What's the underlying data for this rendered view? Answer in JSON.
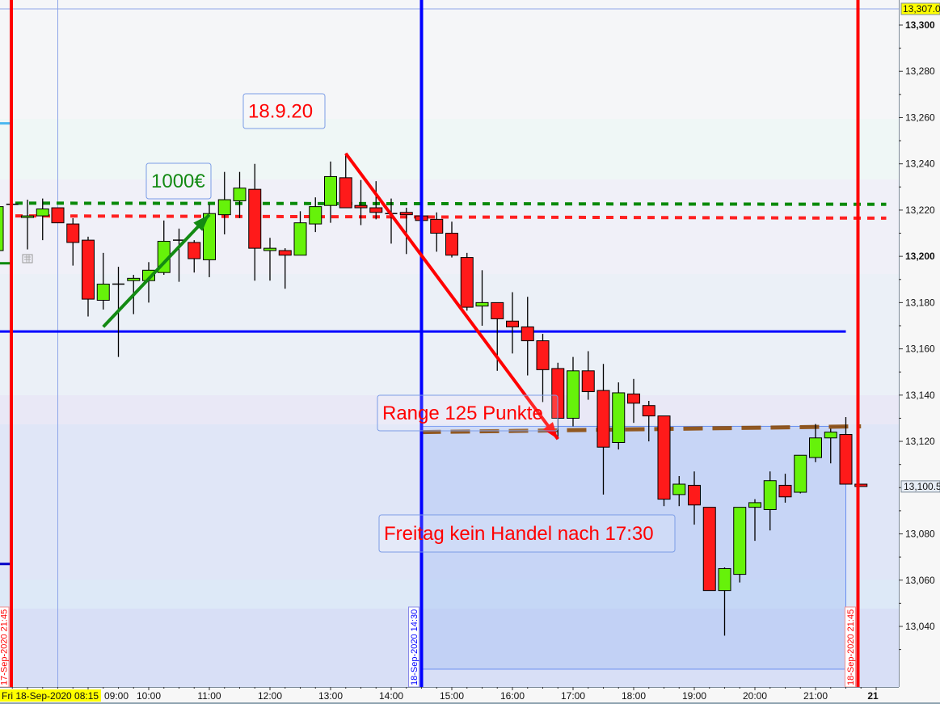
{
  "chart_data": {
    "type": "candlestick",
    "title": "",
    "xlabel": "",
    "ylabel": "",
    "ylim": [
      13021,
      13307
    ],
    "grid": false,
    "colors": {
      "up": "#66f20a",
      "down": "#ff1a1a",
      "wick": "#000000"
    },
    "y_ticks": [
      {
        "value": 13300,
        "label": "13,300",
        "bold": true
      },
      {
        "value": 13280,
        "label": "13,280"
      },
      {
        "value": 13260,
        "label": "13,260"
      },
      {
        "value": 13240,
        "label": "13,240"
      },
      {
        "value": 13220,
        "label": "13,220"
      },
      {
        "value": 13200,
        "label": "13,200",
        "bold": true
      },
      {
        "value": 13180,
        "label": "13,180"
      },
      {
        "value": 13160,
        "label": "13,160"
      },
      {
        "value": 13140,
        "label": "13,140"
      },
      {
        "value": 13120,
        "label": "13,120"
      },
      {
        "value": 13080,
        "label": "13,080"
      },
      {
        "value": 13060,
        "label": "13,060"
      },
      {
        "value": 13040,
        "label": "13,040"
      }
    ],
    "x_ticks": [
      {
        "time": "09:00",
        "label": "09:00"
      },
      {
        "time": "10:00",
        "label": "10:00"
      },
      {
        "time": "11:00",
        "label": "11:00"
      },
      {
        "time": "12:00",
        "label": "12:00"
      },
      {
        "time": "13:00",
        "label": "13:00"
      },
      {
        "time": "14:00",
        "label": "14:00"
      },
      {
        "time": "15:00",
        "label": "15:00"
      },
      {
        "time": "16:00",
        "label": "16:00"
      },
      {
        "time": "17:00",
        "label": "17:00"
      },
      {
        "time": "18:00",
        "label": "18:00"
      },
      {
        "time": "19:00",
        "label": "19:00"
      },
      {
        "time": "20:00",
        "label": "20:00"
      },
      {
        "time": "21:00",
        "label": "21:00"
      },
      {
        "time": "22:00",
        "label": "21",
        "bold": true
      }
    ],
    "candles": [
      {
        "t": "07:30",
        "o": 13202.5,
        "h": 13223.5,
        "l": 13200.5,
        "c": 13221.5
      },
      {
        "t": "07:45",
        "o": 13222.5,
        "h": 13222.5,
        "l": 13222.0,
        "c": 13222.5
      },
      {
        "t": "08:00",
        "o": 13217.0,
        "h": 13224.5,
        "l": 13203.0,
        "c": 13217.5
      },
      {
        "t": "08:15",
        "o": 13217.5,
        "h": 13225.0,
        "l": 13207.0,
        "c": 13220.5
      },
      {
        "t": "08:30",
        "o": 13221.0,
        "h": 13221.0,
        "l": 13214.5,
        "c": 13214.5
      },
      {
        "t": "08:45",
        "o": 13214.0,
        "h": 13216.5,
        "l": 13196.0,
        "c": 13206.0
      },
      {
        "t": "09:00",
        "o": 13207.0,
        "h": 13208.5,
        "l": 13174.0,
        "c": 13181.5
      },
      {
        "t": "09:15",
        "o": 13181.0,
        "h": 13201.5,
        "l": 13177.0,
        "c": 13188.0
      },
      {
        "t": "09:30",
        "o": 13188.0,
        "h": 13195.5,
        "l": 13156.5,
        "c": 13188.0
      },
      {
        "t": "09:45",
        "o": 13189.5,
        "h": 13192.0,
        "l": 13175.0,
        "c": 13190.5
      },
      {
        "t": "10:00",
        "o": 13189.5,
        "h": 13197.5,
        "l": 13180.0,
        "c": 13194.0
      },
      {
        "t": "10:15",
        "o": 13193.0,
        "h": 13215.5,
        "l": 13192.0,
        "c": 13206.5
      },
      {
        "t": "10:30",
        "o": 13207.0,
        "h": 13212.0,
        "l": 13189.0,
        "c": 13207.0
      },
      {
        "t": "10:45",
        "o": 13206.0,
        "h": 13207.0,
        "l": 13193.0,
        "c": 13199.0
      },
      {
        "t": "11:00",
        "o": 13198.5,
        "h": 13222.5,
        "l": 13191.0,
        "c": 13218.5
      },
      {
        "t": "11:15",
        "o": 13218.0,
        "h": 13236.5,
        "l": 13209.5,
        "c": 13224.5
      },
      {
        "t": "11:30",
        "o": 13224.0,
        "h": 13236.5,
        "l": 13216.5,
        "c": 13229.5
      },
      {
        "t": "11:45",
        "o": 13229.0,
        "h": 13240.0,
        "l": 13189.5,
        "c": 13203.5
      },
      {
        "t": "12:00",
        "o": 13202.5,
        "h": 13208.0,
        "l": 13189.5,
        "c": 13203.5
      },
      {
        "t": "12:15",
        "o": 13202.5,
        "h": 13203.5,
        "l": 13186.0,
        "c": 13200.5
      },
      {
        "t": "12:30",
        "o": 13200.5,
        "h": 13219.5,
        "l": 13200.5,
        "c": 13214.5
      },
      {
        "t": "12:45",
        "o": 13214.0,
        "h": 13225.5,
        "l": 13210.5,
        "c": 13221.5
      },
      {
        "t": "13:00",
        "o": 13222.0,
        "h": 13241.0,
        "l": 13214.5,
        "c": 13234.5
      },
      {
        "t": "13:15",
        "o": 13234.0,
        "h": 13244.5,
        "l": 13221.0,
        "c": 13221.0
      },
      {
        "t": "13:30",
        "o": 13222.0,
        "h": 13233.0,
        "l": 13213.5,
        "c": 13221.0
      },
      {
        "t": "13:45",
        "o": 13221.0,
        "h": 13232.5,
        "l": 13216.0,
        "c": 13219.0
      },
      {
        "t": "14:00",
        "o": 13218.5,
        "h": 13225.0,
        "l": 13205.5,
        "c": 13218.5
      },
      {
        "t": "14:15",
        "o": 13219.0,
        "h": 13221.0,
        "l": 13201.0,
        "c": 13218.0
      },
      {
        "t": "14:30",
        "o": 13217.5,
        "h": 13217.5,
        "l": 13215.5,
        "c": 13215.5
      },
      {
        "t": "14:45",
        "o": 13216.0,
        "h": 13219.0,
        "l": 13202.0,
        "c": 13210.0
      },
      {
        "t": "15:00",
        "o": 13210.0,
        "h": 13215.0,
        "l": 13199.5,
        "c": 13200.5
      },
      {
        "t": "15:15",
        "o": 13199.5,
        "h": 13201.5,
        "l": 13176.5,
        "c": 13178.0
      },
      {
        "t": "15:30",
        "o": 13178.5,
        "h": 13194.0,
        "l": 13170.0,
        "c": 13180.0
      },
      {
        "t": "15:45",
        "o": 13180.0,
        "h": 13180.0,
        "l": 13150.5,
        "c": 13173.0
      },
      {
        "t": "16:00",
        "o": 13172.0,
        "h": 13184.5,
        "l": 13158.0,
        "c": 13169.5
      },
      {
        "t": "16:15",
        "o": 13169.5,
        "h": 13182.5,
        "l": 13148.5,
        "c": 13163.5
      },
      {
        "t": "16:30",
        "o": 13163.5,
        "h": 13166.5,
        "l": 13137.0,
        "c": 13151.0
      },
      {
        "t": "16:45",
        "o": 13151.5,
        "h": 13154.0,
        "l": 13121.0,
        "c": 13130.0
      },
      {
        "t": "17:00",
        "o": 13130.0,
        "h": 13156.5,
        "l": 13126.5,
        "c": 13150.5
      },
      {
        "t": "17:15",
        "o": 13150.5,
        "h": 13159.0,
        "l": 13138.0,
        "c": 13141.5
      },
      {
        "t": "17:30",
        "o": 13142.0,
        "h": 13153.5,
        "l": 13097.0,
        "c": 13117.5
      },
      {
        "t": "17:45",
        "o": 13119.5,
        "h": 13145.5,
        "l": 13116.5,
        "c": 13141.0
      },
      {
        "t": "18:00",
        "o": 13140.5,
        "h": 13147.0,
        "l": 13128.0,
        "c": 13136.5
      },
      {
        "t": "18:15",
        "o": 13135.5,
        "h": 13137.5,
        "l": 13120.0,
        "c": 13131.0
      },
      {
        "t": "18:30",
        "o": 13131.0,
        "h": 13131.0,
        "l": 13092.0,
        "c": 13095.0
      },
      {
        "t": "18:45",
        "o": 13097.0,
        "h": 13105.0,
        "l": 13092.0,
        "c": 13101.5
      },
      {
        "t": "19:00",
        "o": 13101.0,
        "h": 13107.0,
        "l": 13084.0,
        "c": 13092.5
      },
      {
        "t": "19:15",
        "o": 13091.5,
        "h": 13091.5,
        "l": 13055.5,
        "c": 13055.5
      },
      {
        "t": "19:30",
        "o": 13055.5,
        "h": 13065.5,
        "l": 13036.0,
        "c": 13065.0
      },
      {
        "t": "19:45",
        "o": 13062.5,
        "h": 13091.5,
        "l": 13059.0,
        "c": 13091.5
      },
      {
        "t": "20:00",
        "o": 13091.5,
        "h": 13095.0,
        "l": 13077.0,
        "c": 13093.5
      },
      {
        "t": "20:15",
        "o": 13090.5,
        "h": 13107.0,
        "l": 13081.5,
        "c": 13103.0
      },
      {
        "t": "20:30",
        "o": 13101.0,
        "h": 13106.0,
        "l": 13093.5,
        "c": 13096.0
      },
      {
        "t": "20:45",
        "o": 13098.0,
        "h": 13114.0,
        "l": 13097.5,
        "c": 13114.0
      },
      {
        "t": "21:00",
        "o": 13113.0,
        "h": 13127.5,
        "l": 13111.0,
        "c": 13121.5
      },
      {
        "t": "21:15",
        "o": 13121.5,
        "h": 13125.5,
        "l": 13110.5,
        "c": 13124.0
      },
      {
        "t": "21:30",
        "o": 13123.0,
        "h": 13130.5,
        "l": 13101.5,
        "c": 13101.5
      },
      {
        "t": "21:45",
        "o": 13101.5,
        "h": 13101.5,
        "l": 13100.5,
        "c": 13100.5
      }
    ],
    "last_price": {
      "value": 13100.5,
      "label": "13,100.5"
    },
    "crosshair": {
      "time": "08:30",
      "price": 13307.0,
      "price_label": "13,307.0",
      "time_label": "Fri 18-Sep-2020 08:15"
    },
    "vertical_lines": [
      {
        "time": "07:44",
        "color": "#ff0000",
        "label": "17-Sep-2020 21:45"
      },
      {
        "time": "14:30",
        "color": "#0000ff",
        "label": "18-Sep-2020 14:30"
      },
      {
        "time": "21:42",
        "color": "#ff0000",
        "label": "18-Sep-2020 21:45"
      }
    ],
    "horizontal_lines": [
      {
        "name": "support-line",
        "from": "07:20",
        "to": "21:30",
        "p1": 13167.5,
        "p2": 13167.5,
        "color": "#0000ff",
        "style": "solid"
      },
      {
        "name": "green-dotted-line",
        "from": "07:48",
        "to": "22:10",
        "p1": 13223.0,
        "p2": 13222.5,
        "color": "#0a8a0a",
        "style": "dotted"
      },
      {
        "name": "red-dotted-line",
        "from": "07:48",
        "to": "22:10",
        "p1": 13217.5,
        "p2": 13216.5,
        "color": "#ff2020",
        "style": "dotted"
      },
      {
        "name": "brown-dashed-line",
        "from": "14:30",
        "to": "21:45",
        "p1": 13124.0,
        "p2": 13126.5,
        "color": "#8b4a0a",
        "style": "dashed"
      }
    ],
    "range_box": {
      "from": "14:30",
      "to": "21:30",
      "top": 13126.5,
      "bottom": 13021.5,
      "color": "#a8c2f4"
    },
    "arrows": [
      {
        "name": "up-trend-arrow",
        "from": {
          "time": "09:15",
          "price": 13169.5
        },
        "to": {
          "time": "11:00",
          "price": 13218.0
        },
        "color": "#138a13"
      },
      {
        "name": "down-trend-arrow",
        "from": {
          "time": "13:15",
          "price": 13244.5
        },
        "to": {
          "time": "16:45",
          "price": 13121.0
        },
        "color": "#ff0000"
      }
    ],
    "left_edge_marks": [
      {
        "price": 13257.5,
        "color": "#4ab8f0"
      },
      {
        "price": 13197.0,
        "color": "#0a8a0a"
      },
      {
        "price": 13067.0,
        "color": "#0000c8"
      }
    ],
    "annotations": [
      {
        "key": "date",
        "text": "18.9.20",
        "color": "#ff0000"
      },
      {
        "key": "profit",
        "text": "1000€",
        "color": "#138a13"
      },
      {
        "key": "range",
        "text": "Range 125 Punkte",
        "color": "#ff0000"
      },
      {
        "key": "note",
        "text": "Freitag kein Handel nach 17:30",
        "color": "#ff0000"
      }
    ]
  }
}
